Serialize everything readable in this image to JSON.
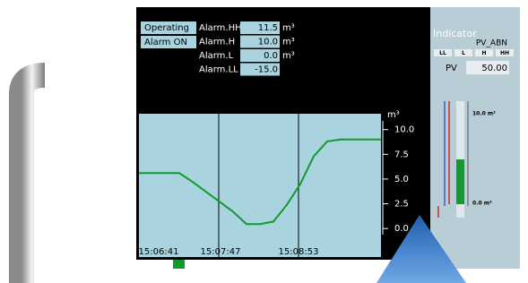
{
  "status": {
    "operating": "Operating",
    "alarm": "Alarm ON"
  },
  "alarms": [
    {
      "label": "Alarm.HH",
      "value": "11.5",
      "unit": "m³"
    },
    {
      "label": "Alarm.H",
      "value": "10.0",
      "unit": "m³"
    },
    {
      "label": "Alarm.L",
      "value": "0.0",
      "unit": "m³"
    },
    {
      "label": "Alarm.LL",
      "value": "-15.0"
    }
  ],
  "trend": {
    "type": "line",
    "unit": "m³",
    "color": "#119a2e",
    "times": [
      "15:06:41",
      "15:07:47",
      "15:08:53"
    ],
    "values": [
      5.6,
      5.6,
      5.6,
      5.6,
      4.7,
      3.7,
      2.7,
      1.7,
      0.45,
      0.45,
      0.7,
      2.4,
      4.5,
      7.3,
      8.8,
      9.0,
      9.0,
      9.0,
      9.0
    ],
    "ylim": [
      -2.7,
      11.6
    ],
    "yticks": [
      {
        "value": 10,
        "label": "10.0"
      },
      7.5,
      {
        "value": 5,
        "label": "5.0"
      },
      2.5,
      {
        "value": 0,
        "label": "0.0"
      }
    ]
  },
  "indicator": {
    "title": "Indicator",
    "tag": "PV_ABN",
    "levels": [
      "LL",
      "L",
      "H",
      "HH"
    ],
    "pv_label": "PV",
    "pv_value": "50.00",
    "scale_top": "10.0 m³",
    "scale_bottom": "0.0 m³"
  }
}
